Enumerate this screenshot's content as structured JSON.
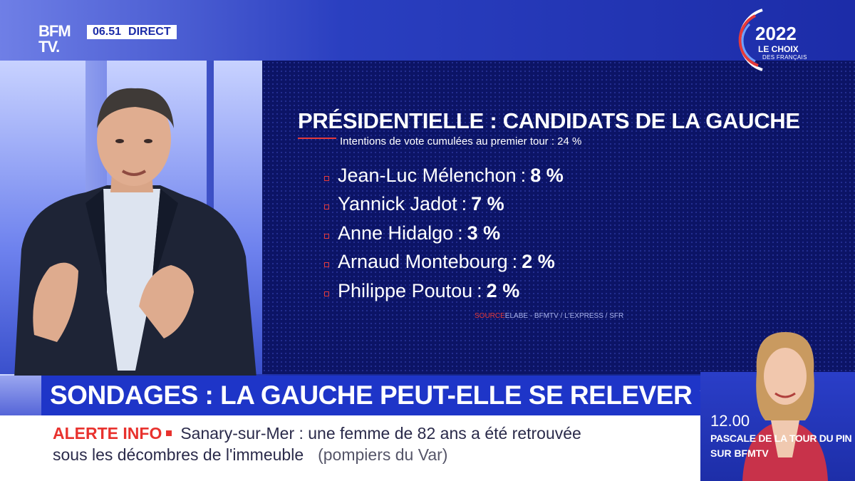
{
  "header": {
    "logo_line1": "BFM",
    "logo_line2": "TV.",
    "time": "06.51",
    "live_label": "DIRECT",
    "brand_year": "2022",
    "brand_line1": "LE CHOIX",
    "brand_line2": "DES FRANÇAIS"
  },
  "poll": {
    "title": "PRÉSIDENTIELLE : CANDIDATS DE LA GAUCHE",
    "subtitle": "Intentions de vote cumulées au premier tour : 24 %",
    "candidates": [
      {
        "name": "Jean-Luc Mélenchon",
        "value": "8 %"
      },
      {
        "name": "Yannick Jadot",
        "value": "7 %"
      },
      {
        "name": "Anne Hidalgo",
        "value": "3 %"
      },
      {
        "name": "Arnaud Montebourg",
        "value": "2 %"
      },
      {
        "name": "Philippe Poutou",
        "value": "2 %"
      }
    ],
    "source_label": "SOURCE",
    "source_text": "ELABE - BFMTV / L'EXPRESS / SFR"
  },
  "headline": {
    "text": "SONDAGES : LA GAUCHE PEUT-ELLE SE RELEVER ?"
  },
  "ticker": {
    "label": "ALERTE INFO",
    "line1": "Sanary-sur-Mer : une femme de 82 ans a été retrouvée",
    "line2": "sous les décombres de l'immeuble",
    "source": "(pompiers du Var)"
  },
  "next_show": {
    "time": "12.00",
    "title": "PASCALE DE LA TOUR DU PIN",
    "channel": "SUR BFMTV"
  },
  "colors": {
    "brand_blue": "#1e35c8",
    "alert_red": "#e8322e",
    "screen_navy": "#0c1466"
  }
}
